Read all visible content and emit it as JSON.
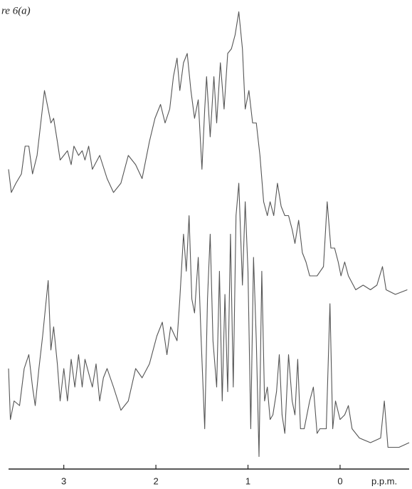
{
  "chart_data": {
    "type": "line",
    "title": "re 6(a)",
    "xlabel": "p.p.m.",
    "xlim": [
      3.6,
      -0.75
    ],
    "xticks": [
      3,
      2,
      1,
      0
    ],
    "ylim": [
      0,
      100
    ],
    "series": [
      {
        "name": null,
        "color": "#555555",
        "x": [
          3.6,
          3.57,
          3.52,
          3.46,
          3.42,
          3.38,
          3.34,
          3.29,
          3.25,
          3.21,
          3.17,
          3.14,
          3.11,
          3.07,
          3.04,
          3.0,
          2.96,
          2.92,
          2.89,
          2.84,
          2.8,
          2.77,
          2.73,
          2.69,
          2.61,
          2.53,
          2.46,
          2.38,
          2.3,
          2.22,
          2.15,
          2.07,
          2.01,
          1.95,
          1.9,
          1.85,
          1.81,
          1.77,
          1.74,
          1.7,
          1.66,
          1.62,
          1.58,
          1.54,
          1.5,
          1.47,
          1.45,
          1.41,
          1.37,
          1.34,
          1.3,
          1.26,
          1.22,
          1.18,
          1.14,
          1.1,
          1.06,
          1.03,
          0.99,
          0.95,
          0.91,
          0.87,
          0.83,
          0.79,
          0.76,
          0.72,
          0.68,
          0.64,
          0.6,
          0.56,
          0.52,
          0.49,
          0.45,
          0.41,
          0.37,
          0.33,
          0.25,
          0.18,
          0.14,
          0.1,
          0.06,
          0.02,
          -0.01,
          -0.05,
          -0.09,
          -0.17,
          -0.25,
          -0.33,
          -0.4,
          -0.46,
          -0.5,
          -0.6,
          -0.73
        ],
        "values": [
          65,
          60,
          62,
          64,
          70,
          70,
          64,
          68,
          75,
          82,
          78,
          75,
          76,
          71,
          67,
          68,
          69,
          66,
          70,
          68,
          69,
          67,
          70,
          65,
          68,
          63,
          60,
          62,
          68,
          66,
          63,
          71,
          76,
          79,
          75,
          78,
          85,
          89,
          82,
          88,
          90,
          82,
          76,
          80,
          65,
          78,
          85,
          72,
          85,
          75,
          88,
          78,
          90,
          91,
          94,
          99,
          91,
          78,
          82,
          75,
          75,
          68,
          58,
          55,
          58,
          55,
          62,
          57,
          55,
          55,
          52,
          49,
          54,
          47,
          45,
          42,
          42,
          44,
          58,
          48,
          48,
          45,
          42,
          45,
          42,
          39,
          40,
          39,
          40,
          44,
          39,
          38,
          39
        ]
      },
      {
        "name": null,
        "color": "#555555",
        "x": [
          3.6,
          3.58,
          3.54,
          3.48,
          3.43,
          3.38,
          3.34,
          3.31,
          3.27,
          3.23,
          3.2,
          3.17,
          3.14,
          3.11,
          3.07,
          3.04,
          3.0,
          2.96,
          2.92,
          2.88,
          2.84,
          2.8,
          2.77,
          2.73,
          2.69,
          2.65,
          2.61,
          2.57,
          2.53,
          2.46,
          2.38,
          2.3,
          2.22,
          2.15,
          2.07,
          1.99,
          1.93,
          1.88,
          1.84,
          1.77,
          1.74,
          1.7,
          1.67,
          1.64,
          1.61,
          1.58,
          1.54,
          1.51,
          1.47,
          1.44,
          1.41,
          1.38,
          1.34,
          1.31,
          1.28,
          1.25,
          1.22,
          1.19,
          1.16,
          1.13,
          1.1,
          1.06,
          1.03,
          1.0,
          0.97,
          0.94,
          0.91,
          0.88,
          0.85,
          0.82,
          0.79,
          0.76,
          0.73,
          0.69,
          0.66,
          0.63,
          0.6,
          0.56,
          0.52,
          0.49,
          0.46,
          0.43,
          0.39,
          0.33,
          0.29,
          0.25,
          0.22,
          0.15,
          0.11,
          0.08,
          0.05,
          0.0,
          -0.05,
          -0.09,
          -0.13,
          -0.21,
          -0.33,
          -0.44,
          -0.48,
          -0.52,
          -0.64,
          -0.75
        ],
        "values": [
          22,
          11,
          15,
          14,
          22,
          25,
          18,
          14,
          22,
          29,
          35,
          41,
          26,
          31,
          23,
          15,
          22,
          15,
          24,
          18,
          25,
          18,
          24,
          21,
          18,
          23,
          15,
          20,
          22,
          18,
          13,
          15,
          22,
          20,
          23,
          29,
          32,
          25,
          31,
          28,
          37,
          51,
          43,
          55,
          37,
          34,
          46,
          29,
          9,
          37,
          51,
          28,
          18,
          43,
          15,
          38,
          17,
          51,
          18,
          55,
          62,
          40,
          58,
          43,
          9,
          46,
          28,
          3,
          43,
          15,
          18,
          11,
          12,
          17,
          25,
          12,
          8,
          25,
          15,
          12,
          24,
          9,
          9,
          15,
          18,
          8,
          9,
          9,
          36,
          9,
          15,
          11,
          12,
          14,
          9,
          7,
          6,
          7,
          15,
          5,
          5,
          6
        ]
      }
    ]
  }
}
